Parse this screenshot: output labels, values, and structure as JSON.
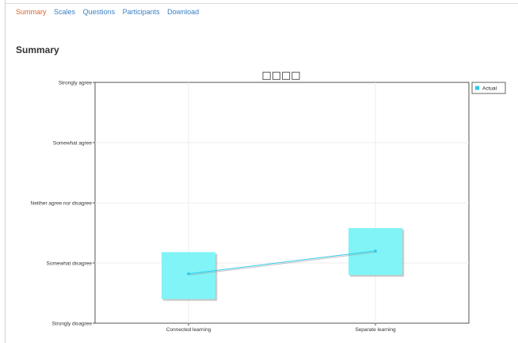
{
  "tabs": [
    {
      "label": "Summary",
      "active": true
    },
    {
      "label": "Scales",
      "active": false
    },
    {
      "label": "Questions",
      "active": false
    },
    {
      "label": "Participants",
      "active": false
    },
    {
      "label": "Download",
      "active": false
    }
  ],
  "page": {
    "heading": "Summary"
  },
  "chart_data": {
    "type": "line",
    "title": "□□□□",
    "categories": [
      "Connected learning",
      "Separate learning"
    ],
    "y_levels": [
      "Strongly disagree",
      "Somewhat disagree",
      "Neither agree nor disagree",
      "Somewhat agree",
      "Strongly agree"
    ],
    "ylim": [
      1,
      5
    ],
    "series": [
      {
        "name": "Actual",
        "color": "#2ec8e8",
        "values": [
          1.82,
          2.2
        ],
        "ranges": [
          [
            1.4,
            2.18
          ],
          [
            1.8,
            2.58
          ]
        ]
      }
    ],
    "legend": "top-right",
    "grid": true
  }
}
